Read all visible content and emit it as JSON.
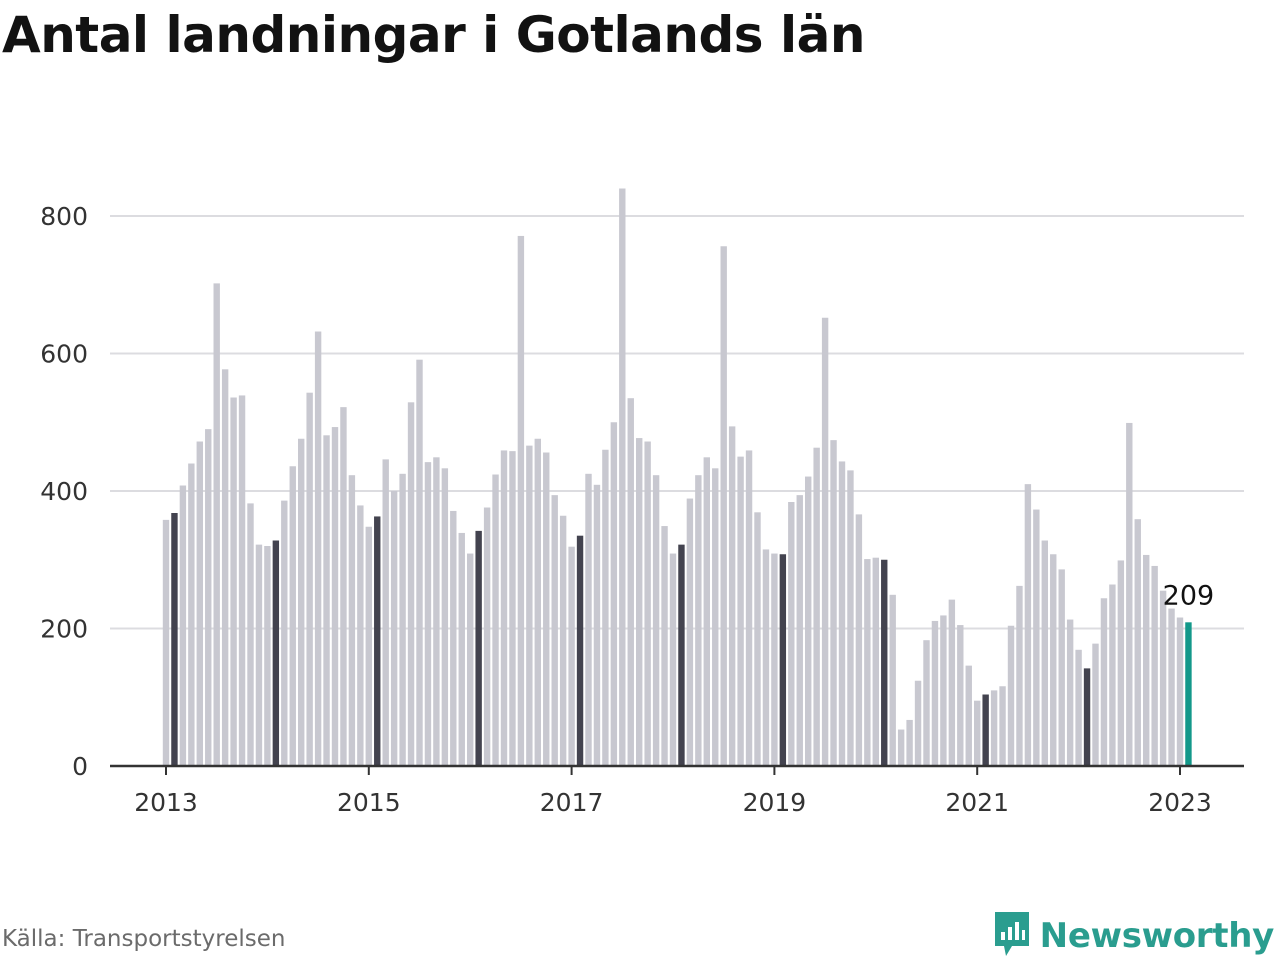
{
  "header": {
    "title": "Antal landningar i Gotlands län"
  },
  "footer": {
    "source": "Källa: Transportstyrelsen",
    "brand": "Newsworthy"
  },
  "colors": {
    "bar": "#c8c8d0",
    "january_bar": "#43434f",
    "latest_bar": "#13988a",
    "brand": "#2a9d8f",
    "grid": "#dcdce0",
    "axis": "#333333"
  },
  "icons": {
    "brand_logo": "chart-bubble-icon"
  },
  "chart_data": {
    "type": "bar",
    "title": "Antal landningar i Gotlands län",
    "xlabel": "",
    "ylabel": "",
    "x_start": "2013-01",
    "x_end": "2023-02",
    "ylim": [
      0,
      840
    ],
    "yticks": [
      0,
      200,
      400,
      600,
      800
    ],
    "xtick_labels": [
      "2013",
      "2015",
      "2017",
      "2019",
      "2021",
      "2023"
    ],
    "grid": true,
    "highlight": "january bars dark, latest month teal",
    "annotation": {
      "text": "209",
      "month": "2023-02"
    },
    "values": [
      358,
      368,
      408,
      440,
      472,
      490,
      702,
      577,
      536,
      539,
      382,
      322,
      320,
      328,
      386,
      436,
      476,
      543,
      632,
      481,
      493,
      522,
      423,
      379,
      348,
      363,
      446,
      400,
      425,
      529,
      591,
      442,
      449,
      433,
      371,
      339,
      309,
      342,
      376,
      424,
      459,
      458,
      771,
      466,
      476,
      456,
      394,
      364,
      319,
      335,
      425,
      409,
      460,
      500,
      840,
      535,
      477,
      472,
      423,
      349,
      309,
      322,
      389,
      423,
      449,
      433,
      756,
      494,
      450,
      459,
      369,
      315,
      309,
      308,
      384,
      394,
      421,
      463,
      652,
      474,
      443,
      430,
      366,
      301,
      303,
      300,
      249,
      53,
      67,
      124,
      183,
      211,
      219,
      242,
      205,
      146,
      95,
      104,
      110,
      116,
      204,
      262,
      410,
      373,
      328,
      308,
      286,
      213,
      169,
      142,
      178,
      244,
      264,
      299,
      499,
      359,
      307,
      291,
      255,
      229,
      216,
      209
    ]
  }
}
